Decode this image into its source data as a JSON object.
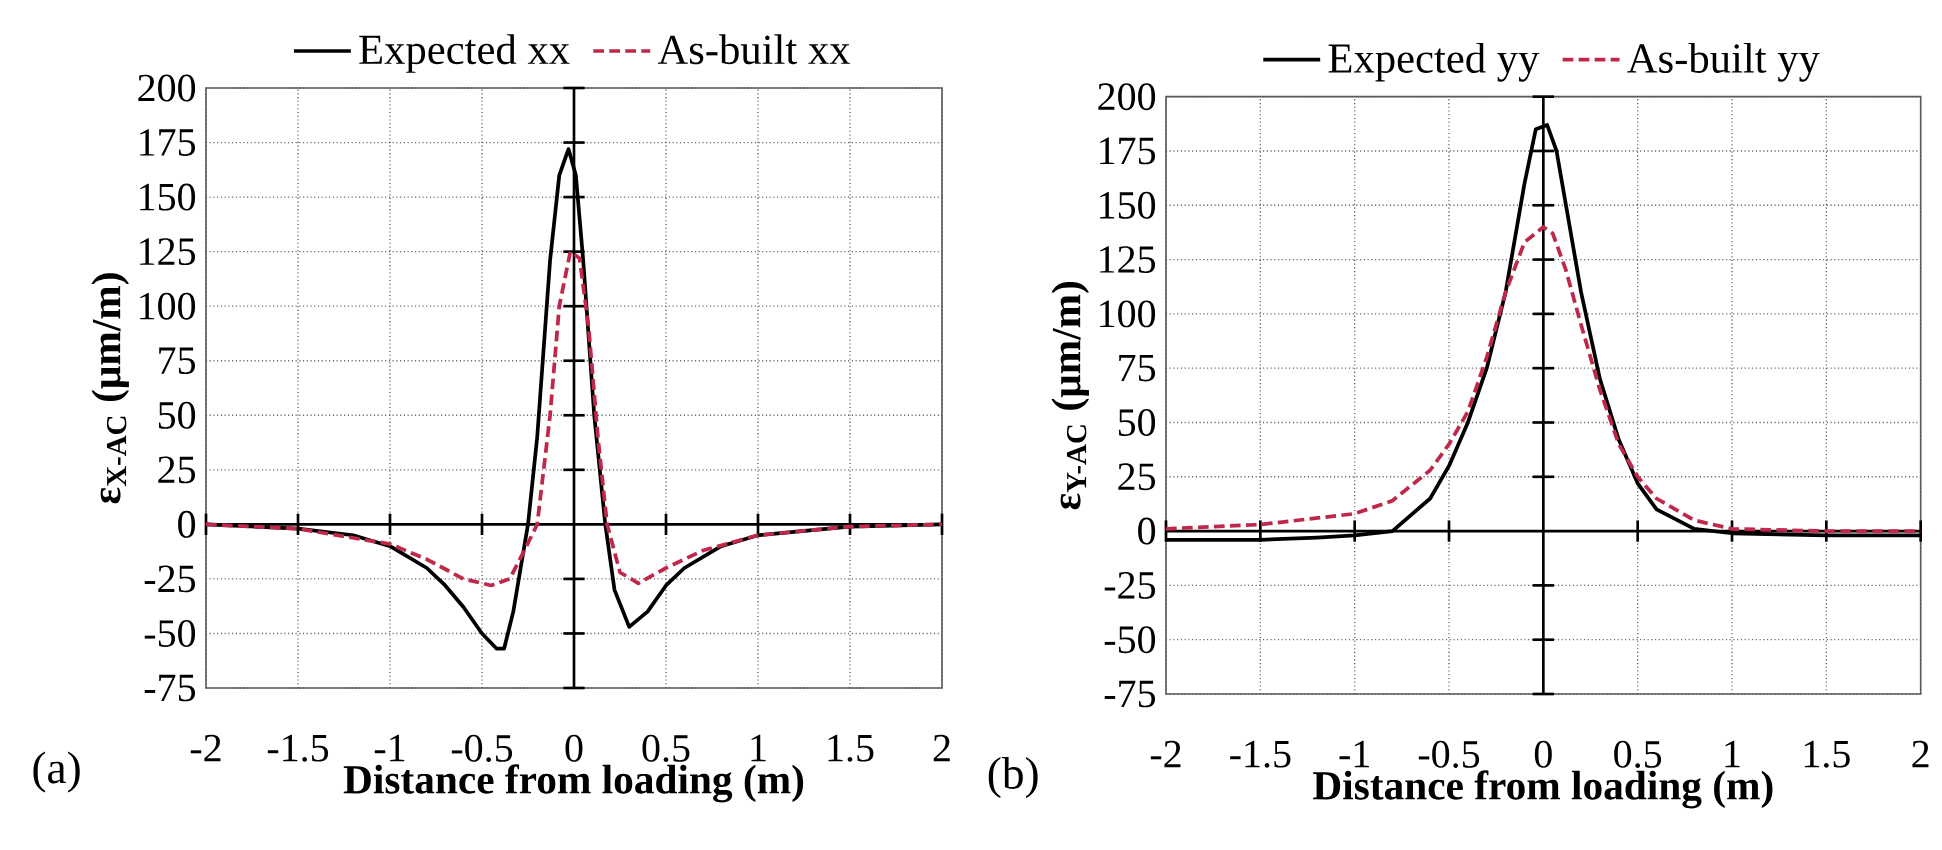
{
  "chart_data": [
    {
      "type": "line",
      "xlabel": "Distance from loading (m)",
      "ylabel": "ε$_{X-AC}$ (μm/m)",
      "annotations": [
        "(a)"
      ],
      "xlim": [
        -2,
        2
      ],
      "xticks": [
        -2,
        -1.5,
        -1,
        -0.5,
        0,
        0.5,
        1,
        1.5,
        2
      ],
      "ylim": [
        -75,
        200
      ],
      "yticks": [
        -75,
        -50,
        -25,
        0,
        25,
        50,
        75,
        100,
        125,
        150,
        175,
        200
      ],
      "grid": true,
      "legend": "top",
      "marker": "none",
      "series": [
        {
          "name": "Expected xx",
          "color": "#000000",
          "line_style": "solid",
          "x": [
            -2,
            -1.5,
            -1.2,
            -1,
            -0.8,
            -0.7,
            -0.6,
            -0.5,
            -0.42,
            -0.38,
            -0.33,
            -0.29,
            -0.25,
            -0.2,
            -0.13,
            -0.08,
            -0.03,
            0.01,
            0.05,
            0.11,
            0.17,
            0.22,
            0.3,
            0.4,
            0.5,
            0.6,
            0.8,
            1,
            1.5,
            2
          ],
          "values": [
            0,
            -2,
            -5,
            -10,
            -20,
            -28,
            -38,
            -50,
            -57,
            -57,
            -40,
            -20,
            0,
            40,
            121,
            160,
            172,
            160,
            121,
            50,
            0,
            -30,
            -47,
            -40,
            -28,
            -20,
            -10,
            -5,
            -1,
            0
          ]
        },
        {
          "name": "As-built xx",
          "color": "#c0284a",
          "line_style": "dashed",
          "x": [
            -2,
            -1.5,
            -1,
            -0.8,
            -0.6,
            -0.45,
            -0.35,
            -0.27,
            -0.2,
            -0.13,
            -0.08,
            -0.02,
            0.03,
            0.08,
            0.13,
            0.18,
            0.25,
            0.35,
            0.5,
            0.7,
            1,
            1.5,
            2
          ],
          "values": [
            0,
            -2,
            -9,
            -16,
            -25,
            -28,
            -25,
            -12,
            0,
            50,
            100,
            125,
            122,
            90,
            40,
            0,
            -22,
            -27,
            -20,
            -12,
            -5,
            -1,
            0
          ]
        }
      ]
    },
    {
      "type": "line",
      "xlabel": "Distance from loading (m)",
      "ylabel": "ε$_{Y-AC}$ (μm/m)",
      "annotations": [
        "(b)"
      ],
      "xlim": [
        -2,
        2
      ],
      "xticks": [
        -2,
        -1.5,
        -1,
        -0.5,
        0,
        0.5,
        1,
        1.5,
        2
      ],
      "ylim": [
        -75,
        200
      ],
      "yticks": [
        -75,
        -50,
        -25,
        0,
        25,
        50,
        75,
        100,
        125,
        150,
        175,
        200
      ],
      "grid": true,
      "legend": "top",
      "marker": "none",
      "series": [
        {
          "name": "Expected yy",
          "color": "#000000",
          "line_style": "solid",
          "x": [
            -2,
            -1.5,
            -1.2,
            -1,
            -0.8,
            -0.6,
            -0.5,
            -0.4,
            -0.3,
            -0.2,
            -0.1,
            -0.04,
            0.02,
            0.07,
            0.12,
            0.2,
            0.3,
            0.4,
            0.5,
            0.6,
            0.8,
            1,
            1.5,
            2
          ],
          "values": [
            -4,
            -4,
            -3,
            -2,
            0,
            15,
            30,
            50,
            75,
            110,
            160,
            185,
            187,
            175,
            150,
            110,
            70,
            42,
            22,
            10,
            1,
            -1,
            -2,
            -2
          ]
        },
        {
          "name": "As-built yy",
          "color": "#c0284a",
          "line_style": "dashed",
          "x": [
            -2,
            -1.5,
            -1,
            -0.8,
            -0.6,
            -0.5,
            -0.4,
            -0.3,
            -0.2,
            -0.1,
            0,
            0.05,
            0.12,
            0.2,
            0.3,
            0.4,
            0.5,
            0.6,
            0.8,
            1,
            1.5,
            2
          ],
          "values": [
            1,
            3,
            8,
            14,
            28,
            40,
            55,
            80,
            110,
            133,
            140,
            137,
            120,
            95,
            65,
            40,
            25,
            15,
            5,
            1,
            0,
            0
          ]
        }
      ]
    }
  ]
}
